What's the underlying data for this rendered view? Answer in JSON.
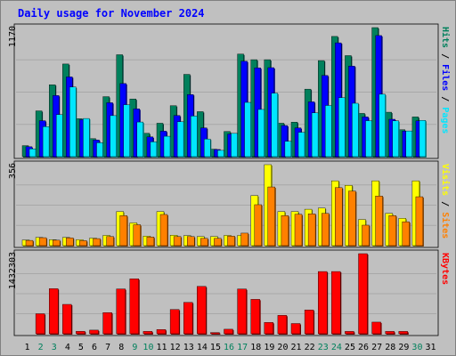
{
  "chart_data": {
    "type": "bar",
    "title": "Daily usage for November 2024",
    "days": [
      "1",
      "2",
      "3",
      "4",
      "5",
      "6",
      "7",
      "8",
      "9",
      "10",
      "11",
      "12",
      "13",
      "14",
      "15",
      "16",
      "17",
      "18",
      "19",
      "20",
      "21",
      "22",
      "23",
      "24",
      "25",
      "26",
      "27",
      "28",
      "29",
      "30",
      "31"
    ],
    "weekend_days": [
      "2",
      "3",
      "9",
      "10",
      "16",
      "17",
      "23",
      "24",
      "30"
    ],
    "panels": [
      {
        "id": "hits_files_pages",
        "ymax_label": "1170",
        "ymax": 1170,
        "series": [
          {
            "name": "Hits",
            "color": "#00805c",
            "values": [
              100,
              415,
              652,
              840,
              344,
              163,
              544,
              924,
              523,
              212,
              303,
              462,
              746,
              408,
              68,
              228,
              930,
              879,
              879,
              303,
              313,
              612,
              871,
              1090,
              916,
              392,
              1170,
              403,
              244,
              360,
              0
            ]
          },
          {
            "name": "Files",
            "color": "#0000ff",
            "values": [
              90,
              326,
              554,
              723,
              335,
              151,
              489,
              663,
              433,
              179,
              231,
              373,
              563,
              261,
              65,
              205,
              865,
              805,
              807,
              282,
              261,
              497,
              736,
              1032,
              821,
              360,
              1098,
              339,
              232,
              325,
              0
            ]
          },
          {
            "name": "Pages",
            "color": "#00e6ff",
            "values": [
              71,
              272,
              381,
              631,
              346,
              126,
              372,
              471,
              314,
              134,
              185,
              317,
              368,
              160,
              57,
              211,
              492,
              428,
              576,
              139,
              221,
              397,
              464,
              535,
              484,
              326,
              566,
              325,
              233,
              329,
              0
            ]
          }
        ],
        "legend": [
          "Pages",
          "Files",
          "Hits"
        ]
      },
      {
        "id": "visits_sites",
        "ymax_label": "356",
        "ymax": 356,
        "series": [
          {
            "name": "Visits",
            "color": "#ffff00",
            "values": [
              25,
              36,
              26,
              36,
              26,
              33,
              45,
              150,
              100,
              42,
              150,
              46,
              44,
              40,
              40,
              45,
              45,
              220,
              356,
              150,
              150,
              160,
              165,
              285,
              265,
              115,
              285,
              142,
              120,
              285,
              0
            ]
          },
          {
            "name": "Sites",
            "color": "#ff8000",
            "values": [
              23,
              35,
              24,
              34,
              22,
              31,
              40,
              132,
              92,
              38,
              137,
              40,
              40,
              32,
              32,
              42,
              55,
              180,
              258,
              132,
              138,
              140,
              142,
              255,
              240,
              90,
              218,
              132,
              105,
              215,
              0
            ]
          }
        ],
        "legend": [
          "Sites",
          "Visits"
        ]
      },
      {
        "id": "kbytes",
        "ymax_label": "1432303",
        "ymax": 1432303,
        "series": [
          {
            "name": "KBytes",
            "color": "#ff0000",
            "values": [
              0,
              358051,
              806058,
              525240,
              44758,
              65240,
              378010,
              801598,
              983000,
              42460,
              75000,
              434630,
              561000,
              847000,
              22000,
              81000,
              801000,
              615000,
              202000,
              329000,
              183000,
              425000,
              1113000,
              1113000,
              42000,
              1432303,
              208000,
              42000,
              42000,
              0,
              0
            ]
          }
        ],
        "legend": [
          "KBytes"
        ]
      }
    ]
  }
}
